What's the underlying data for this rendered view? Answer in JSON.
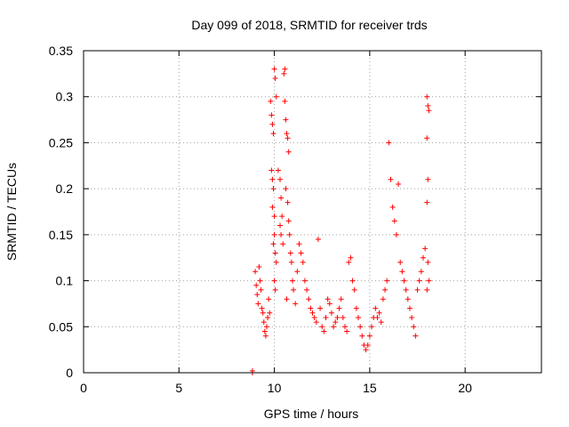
{
  "chart_data": {
    "type": "scatter",
    "title": "Day 099 of 2018, SRMTID for receiver trds",
    "xlabel": "GPS time / hours",
    "ylabel": "SRMTID / TECUs",
    "xlim": [
      0,
      24
    ],
    "ylim": [
      0,
      0.35
    ],
    "xticks": [
      0,
      5,
      10,
      15,
      20
    ],
    "yticks": [
      0,
      0.05,
      0.1,
      0.15,
      0.2,
      0.25,
      0.3,
      0.35
    ],
    "grid": true,
    "marker": "+",
    "marker_color": "#ff0000",
    "series": [
      {
        "points": [
          [
            8.85,
            0.0
          ],
          [
            8.85,
            0.002
          ],
          [
            9.0,
            0.11
          ],
          [
            9.05,
            0.095
          ],
          [
            9.1,
            0.085
          ],
          [
            9.15,
            0.075
          ],
          [
            9.2,
            0.115
          ],
          [
            9.25,
            0.1
          ],
          [
            9.3,
            0.09
          ],
          [
            9.35,
            0.07
          ],
          [
            9.4,
            0.065
          ],
          [
            9.45,
            0.055
          ],
          [
            9.5,
            0.045
          ],
          [
            9.55,
            0.04
          ],
          [
            9.6,
            0.05
          ],
          [
            9.65,
            0.06
          ],
          [
            9.7,
            0.08
          ],
          [
            9.75,
            0.065
          ],
          [
            9.8,
            0.295
          ],
          [
            9.85,
            0.28
          ],
          [
            9.9,
            0.27
          ],
          [
            9.95,
            0.26
          ],
          [
            9.85,
            0.22
          ],
          [
            9.9,
            0.21
          ],
          [
            9.95,
            0.2
          ],
          [
            9.9,
            0.18
          ],
          [
            10.0,
            0.17
          ],
          [
            10.0,
            0.15
          ],
          [
            9.95,
            0.14
          ],
          [
            10.05,
            0.13
          ],
          [
            10.0,
            0.1
          ],
          [
            10.05,
            0.09
          ],
          [
            10.1,
            0.12
          ],
          [
            10.0,
            0.33
          ],
          [
            10.05,
            0.32
          ],
          [
            10.1,
            0.3
          ],
          [
            10.2,
            0.22
          ],
          [
            10.3,
            0.21
          ],
          [
            10.35,
            0.19
          ],
          [
            10.4,
            0.17
          ],
          [
            10.3,
            0.16
          ],
          [
            10.35,
            0.15
          ],
          [
            10.45,
            0.14
          ],
          [
            10.5,
            0.325
          ],
          [
            10.55,
            0.33
          ],
          [
            10.55,
            0.295
          ],
          [
            10.6,
            0.275
          ],
          [
            10.65,
            0.26
          ],
          [
            10.7,
            0.255
          ],
          [
            10.75,
            0.24
          ],
          [
            10.6,
            0.2
          ],
          [
            10.7,
            0.185
          ],
          [
            10.75,
            0.165
          ],
          [
            10.8,
            0.15
          ],
          [
            10.85,
            0.13
          ],
          [
            10.9,
            0.12
          ],
          [
            10.95,
            0.1
          ],
          [
            11.0,
            0.09
          ],
          [
            10.65,
            0.08
          ],
          [
            11.1,
            0.075
          ],
          [
            11.2,
            0.11
          ],
          [
            11.3,
            0.14
          ],
          [
            11.4,
            0.13
          ],
          [
            11.5,
            0.12
          ],
          [
            11.6,
            0.1
          ],
          [
            11.7,
            0.09
          ],
          [
            11.8,
            0.08
          ],
          [
            11.9,
            0.07
          ],
          [
            12.0,
            0.065
          ],
          [
            12.1,
            0.06
          ],
          [
            12.2,
            0.055
          ],
          [
            12.3,
            0.145
          ],
          [
            12.4,
            0.07
          ],
          [
            12.5,
            0.05
          ],
          [
            12.6,
            0.045
          ],
          [
            12.7,
            0.06
          ],
          [
            12.8,
            0.08
          ],
          [
            12.9,
            0.075
          ],
          [
            13.0,
            0.065
          ],
          [
            13.1,
            0.05
          ],
          [
            13.2,
            0.055
          ],
          [
            13.3,
            0.06
          ],
          [
            13.4,
            0.07
          ],
          [
            13.5,
            0.08
          ],
          [
            13.6,
            0.06
          ],
          [
            13.7,
            0.05
          ],
          [
            13.8,
            0.045
          ],
          [
            13.9,
            0.12
          ],
          [
            14.0,
            0.125
          ],
          [
            14.1,
            0.1
          ],
          [
            14.2,
            0.09
          ],
          [
            14.3,
            0.07
          ],
          [
            14.4,
            0.06
          ],
          [
            14.5,
            0.05
          ],
          [
            14.6,
            0.04
          ],
          [
            14.7,
            0.03
          ],
          [
            14.8,
            0.025
          ],
          [
            14.9,
            0.03
          ],
          [
            15.0,
            0.04
          ],
          [
            15.1,
            0.05
          ],
          [
            15.2,
            0.06
          ],
          [
            15.3,
            0.07
          ],
          [
            15.4,
            0.06
          ],
          [
            15.5,
            0.065
          ],
          [
            15.6,
            0.055
          ],
          [
            15.7,
            0.08
          ],
          [
            15.8,
            0.09
          ],
          [
            15.9,
            0.1
          ],
          [
            16.0,
            0.25
          ],
          [
            16.1,
            0.21
          ],
          [
            16.2,
            0.18
          ],
          [
            16.3,
            0.165
          ],
          [
            16.4,
            0.15
          ],
          [
            16.5,
            0.205
          ],
          [
            16.6,
            0.12
          ],
          [
            16.7,
            0.11
          ],
          [
            16.8,
            0.1
          ],
          [
            16.9,
            0.09
          ],
          [
            17.0,
            0.08
          ],
          [
            17.1,
            0.07
          ],
          [
            17.2,
            0.06
          ],
          [
            17.3,
            0.05
          ],
          [
            17.4,
            0.04
          ],
          [
            17.5,
            0.09
          ],
          [
            17.6,
            0.1
          ],
          [
            17.7,
            0.11
          ],
          [
            17.8,
            0.125
          ],
          [
            17.9,
            0.135
          ],
          [
            18.0,
            0.3
          ],
          [
            18.05,
            0.29
          ],
          [
            18.1,
            0.285
          ],
          [
            18.0,
            0.255
          ],
          [
            18.05,
            0.21
          ],
          [
            18.0,
            0.185
          ],
          [
            18.05,
            0.12
          ],
          [
            18.1,
            0.1
          ],
          [
            18.0,
            0.09
          ]
        ]
      }
    ]
  }
}
